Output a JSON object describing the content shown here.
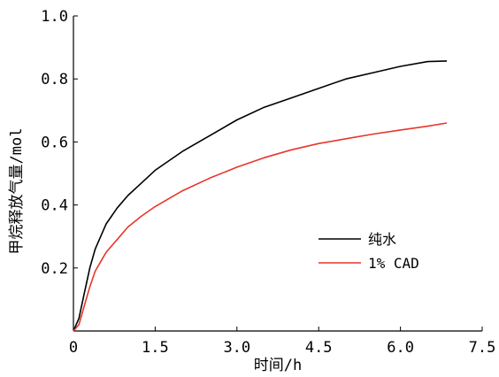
{
  "chart_data": {
    "type": "line",
    "xlabel": "时间/h",
    "ylabel": "甲烷释放气量/mol",
    "xlim": [
      0,
      7.5
    ],
    "ylim": [
      0,
      1.0
    ],
    "x_ticks": [
      "0",
      "1.5",
      "3.0",
      "4.5",
      "6.0",
      "7.5"
    ],
    "y_ticks": [
      "0.2",
      "0.4",
      "0.6",
      "0.8",
      "1.0"
    ],
    "grid": false,
    "legend_position": "right",
    "series": [
      {
        "name": "纯水",
        "color": "#000000",
        "x": [
          0,
          0.1,
          0.2,
          0.3,
          0.4,
          0.5,
          0.6,
          0.8,
          1.0,
          1.25,
          1.5,
          2.0,
          2.5,
          3.0,
          3.5,
          4.0,
          4.5,
          5.0,
          5.5,
          6.0,
          6.5,
          6.85
        ],
        "y": [
          0.0,
          0.04,
          0.12,
          0.2,
          0.26,
          0.3,
          0.34,
          0.39,
          0.43,
          0.47,
          0.51,
          0.57,
          0.62,
          0.67,
          0.71,
          0.74,
          0.77,
          0.8,
          0.82,
          0.84,
          0.855,
          0.857
        ]
      },
      {
        "name": "1% CAD",
        "color": "#e8352a",
        "x": [
          0,
          0.1,
          0.2,
          0.3,
          0.4,
          0.5,
          0.6,
          0.8,
          1.0,
          1.25,
          1.5,
          2.0,
          2.5,
          3.0,
          3.5,
          4.0,
          4.5,
          5.0,
          5.5,
          6.0,
          6.5,
          6.85
        ],
        "y": [
          0.0,
          0.02,
          0.08,
          0.14,
          0.19,
          0.22,
          0.25,
          0.29,
          0.33,
          0.365,
          0.395,
          0.445,
          0.485,
          0.52,
          0.55,
          0.575,
          0.595,
          0.61,
          0.625,
          0.638,
          0.65,
          0.66
        ]
      }
    ]
  }
}
